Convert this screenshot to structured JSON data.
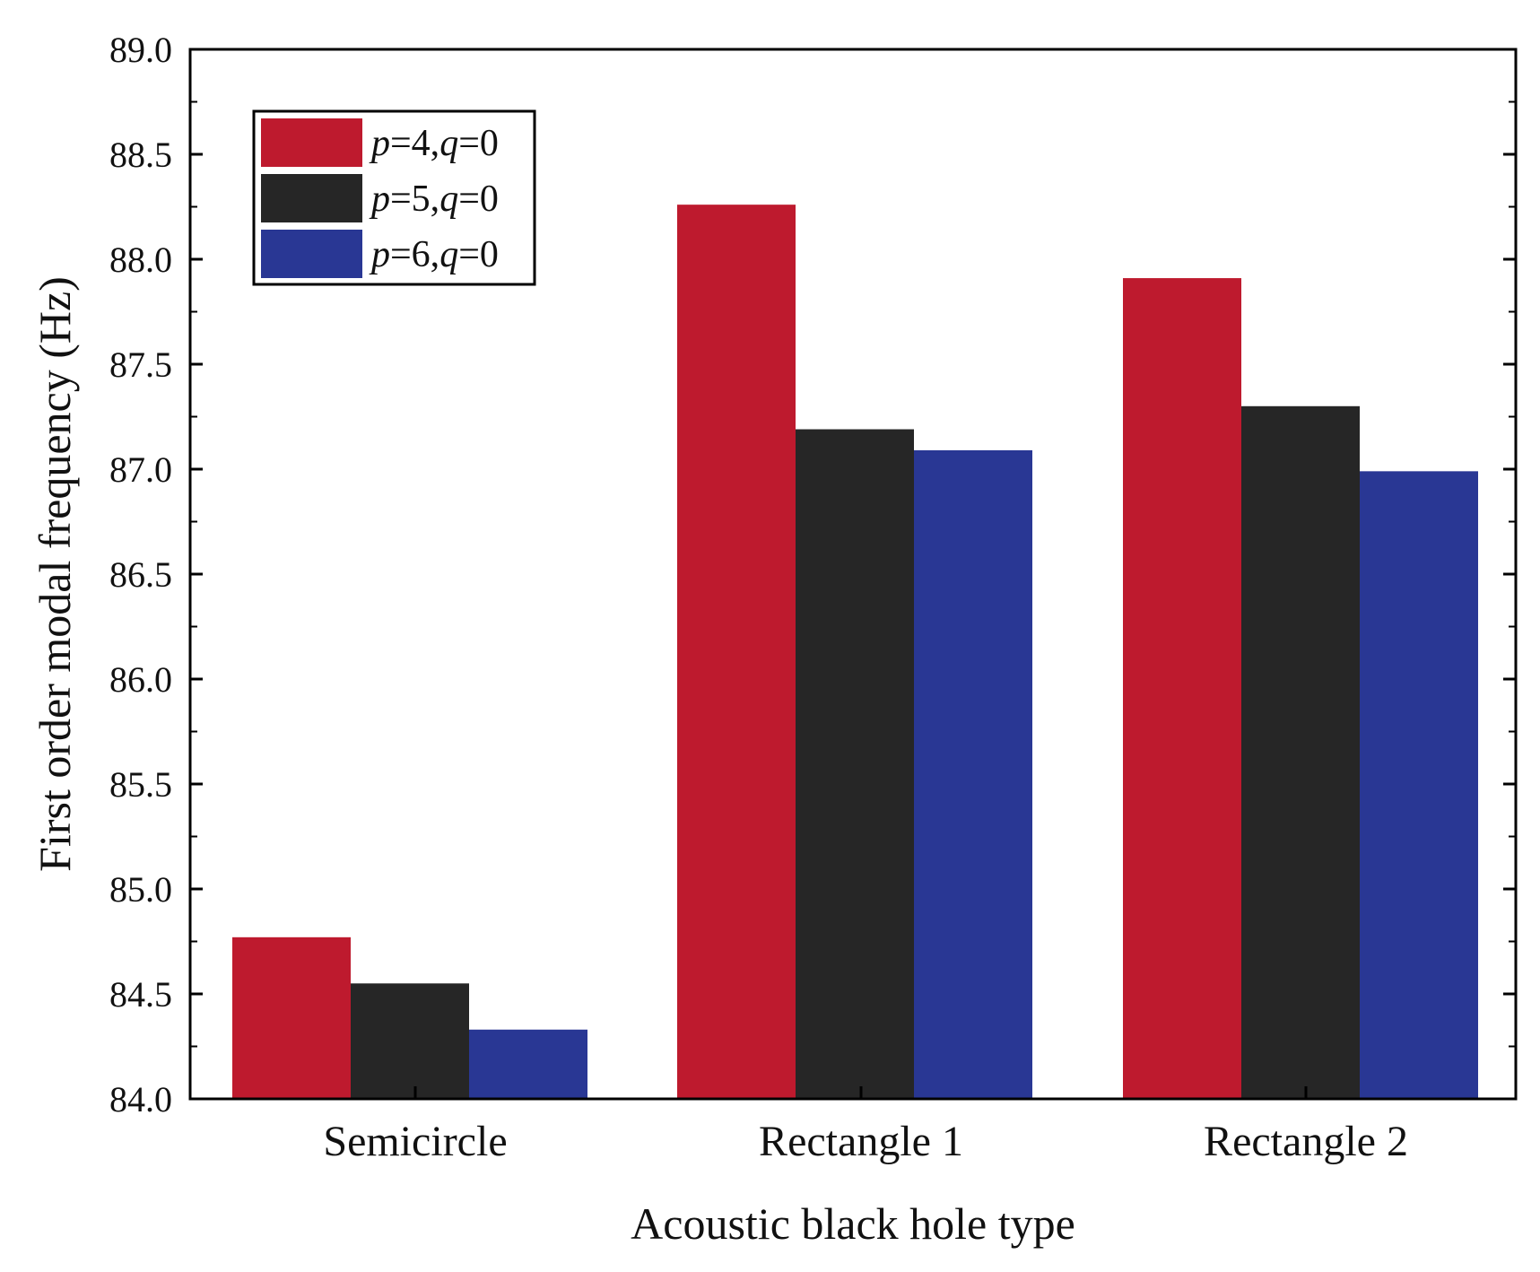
{
  "chart_data": {
    "type": "bar",
    "title": "",
    "xlabel": "Acoustic black hole type",
    "ylabel": "First order modal frequency (Hz)",
    "categories": [
      "Semicircle",
      "Rectangle 1",
      "Rectangle 2"
    ],
    "ylim": [
      84.0,
      89.0
    ],
    "yticks": [
      "84.0",
      "84.5",
      "85.0",
      "85.5",
      "86.0",
      "86.5",
      "87.0",
      "87.5",
      "88.0",
      "88.5",
      "89.0"
    ],
    "grid": false,
    "legend_position": "top-left",
    "series": [
      {
        "name": "p=4,q=0",
        "var1": "p",
        "val1": "=4,",
        "var2": "q",
        "val2": "=0",
        "color": "#be1a2e",
        "values": [
          84.77,
          88.26,
          87.91
        ]
      },
      {
        "name": "p=5,q=0",
        "var1": "p",
        "val1": "=5,",
        "var2": "q",
        "val2": "=0",
        "color": "#262626",
        "values": [
          84.55,
          87.19,
          87.3
        ]
      },
      {
        "name": "p=6,q=0",
        "var1": "p",
        "val1": "=6,",
        "var2": "q",
        "val2": "=0",
        "color": "#293794",
        "values": [
          84.33,
          87.09,
          86.99
        ]
      }
    ]
  }
}
